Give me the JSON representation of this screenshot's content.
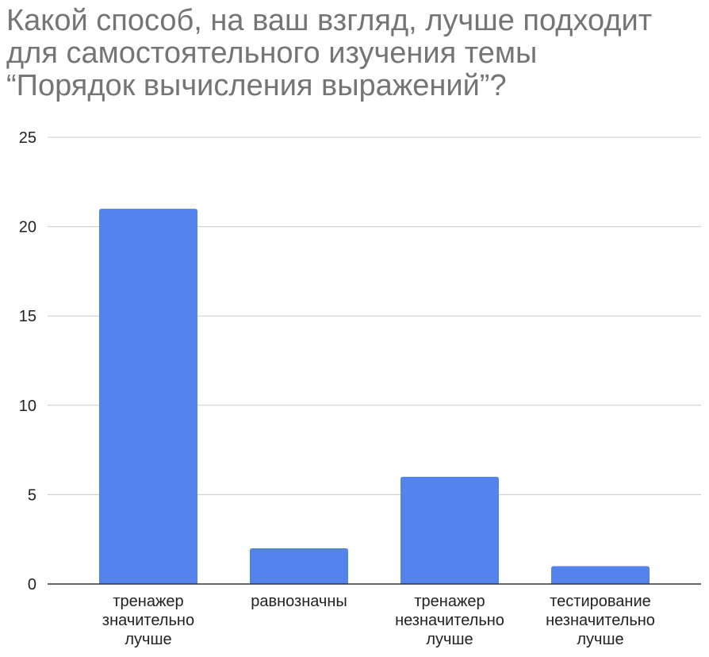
{
  "chart_data": {
    "type": "bar",
    "title_lines": [
      "Какой способ, на ваш взгляд, лучше подходит",
      "для самостоятельного изучения темы",
      "“Порядок вычисления выражений”?"
    ],
    "categories": [
      [
        "тренажер",
        "значительно",
        "лучше"
      ],
      [
        "равнозначны"
      ],
      [
        "тренажер",
        "незначительно",
        "лучше"
      ],
      [
        "тестирование",
        "незначительно",
        "лучше"
      ]
    ],
    "values": [
      21,
      2,
      6,
      1
    ],
    "ylim": [
      0,
      25
    ],
    "yticks": [
      0,
      5,
      10,
      15,
      20,
      25
    ],
    "xlabel": "",
    "ylabel": "",
    "grid": true,
    "bar_color": "#5383ec",
    "grid_color": "#cccccc",
    "axis_color": "#333333"
  }
}
